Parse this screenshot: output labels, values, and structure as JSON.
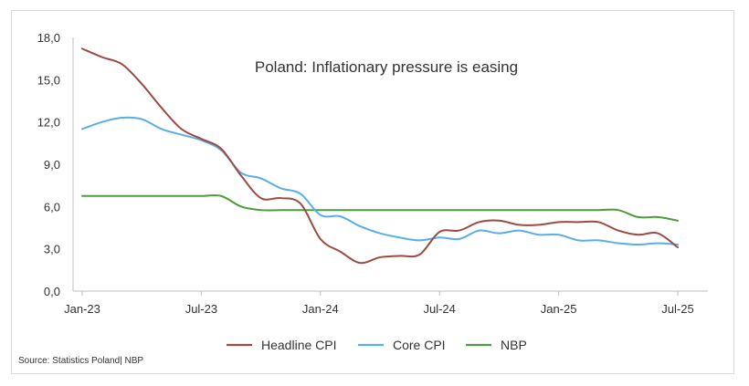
{
  "chart_data": {
    "type": "line",
    "title": "Poland: Inflationary pressure is easing",
    "source": "Source: Statistics Poland| NBP",
    "xlabel": "",
    "ylabel": "",
    "ylim": [
      0,
      18
    ],
    "yticks": [
      "0,0",
      "3,0",
      "6,0",
      "9,0",
      "12,0",
      "15,0",
      "18,0"
    ],
    "xticks": [
      "Jan-23",
      "Jul-23",
      "Jan-24",
      "Jul-24",
      "Jan-25",
      "Jul-25"
    ],
    "x": [
      "Jan-23",
      "Feb-23",
      "Mar-23",
      "Apr-23",
      "May-23",
      "Jun-23",
      "Jul-23",
      "Aug-23",
      "Sep-23",
      "Oct-23",
      "Nov-23",
      "Dec-23",
      "Jan-24",
      "Feb-24",
      "Mar-24",
      "Apr-24",
      "May-24",
      "Jun-24",
      "Jul-24",
      "Aug-24",
      "Sep-24",
      "Oct-24",
      "Nov-24",
      "Dec-24",
      "Jan-25",
      "Feb-25",
      "Mar-25",
      "Apr-25",
      "May-25",
      "Jun-25",
      "Jul-25"
    ],
    "legend_position": "bottom",
    "grid": false,
    "series": [
      {
        "name": "Headline CPI",
        "color": "#9c4a42",
        "values": [
          17.2,
          16.6,
          16.1,
          14.7,
          13.0,
          11.5,
          10.8,
          10.1,
          8.2,
          6.6,
          6.6,
          6.2,
          3.7,
          2.8,
          2.0,
          2.4,
          2.5,
          2.6,
          4.2,
          4.3,
          4.9,
          5.0,
          4.7,
          4.7,
          4.9,
          4.9,
          4.9,
          4.3,
          4.0,
          4.1,
          3.1
        ]
      },
      {
        "name": "Core CPI",
        "color": "#5aaee8",
        "values": [
          11.5,
          12.0,
          12.3,
          12.2,
          11.5,
          11.1,
          10.7,
          10.0,
          8.4,
          8.0,
          7.3,
          6.9,
          5.4,
          5.3,
          4.6,
          4.1,
          3.8,
          3.6,
          3.8,
          3.7,
          4.3,
          4.1,
          4.3,
          4.0,
          4.0,
          3.6,
          3.6,
          3.4,
          3.3,
          3.4,
          3.3
        ]
      },
      {
        "name": "NBP",
        "color": "#4e9a3e",
        "values": [
          6.75,
          6.75,
          6.75,
          6.75,
          6.75,
          6.75,
          6.75,
          6.75,
          6.0,
          5.75,
          5.75,
          5.75,
          5.75,
          5.75,
          5.75,
          5.75,
          5.75,
          5.75,
          5.75,
          5.75,
          5.75,
          5.75,
          5.75,
          5.75,
          5.75,
          5.75,
          5.75,
          5.75,
          5.25,
          5.25,
          5.0
        ]
      }
    ]
  }
}
